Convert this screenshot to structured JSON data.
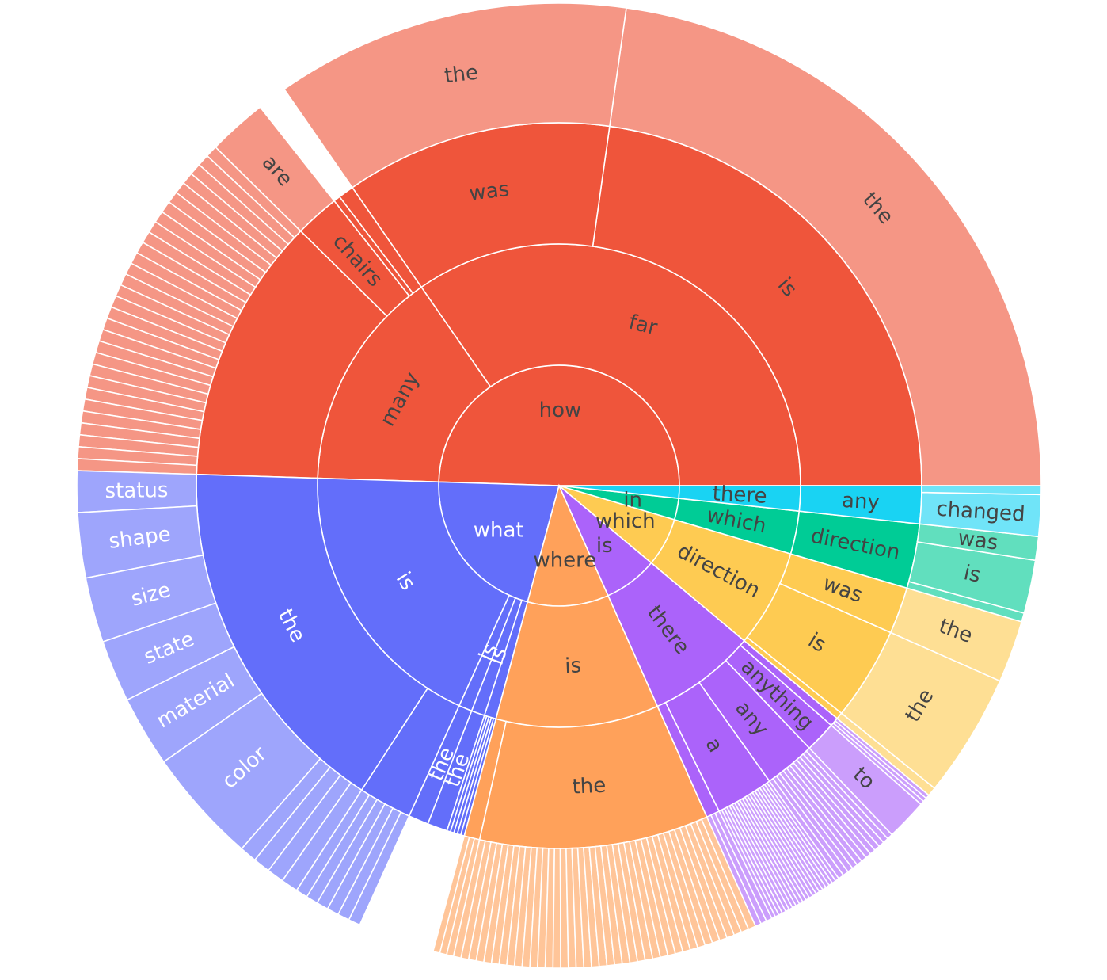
{
  "chart_data": {
    "type": "sunburst",
    "title": "",
    "value_unit": "share of questions (%), estimated from arc angles",
    "colors": {
      "how": "#EF553B",
      "what": "#636EFA",
      "where": "#FFA15A",
      "is": "#AB63FA",
      "which": "#FECB52",
      "in": "#00CC96",
      "are": "#19D3F3"
    },
    "tree": [
      {
        "id": "how",
        "label": "how",
        "value": 50.0,
        "children": [
          {
            "label": "far",
            "value": 35.0,
            "children": [
              {
                "label": "is",
                "value": 23.0,
                "children": [
                  {
                    "label": "the",
                    "value": 23.0
                  }
                ]
              },
              {
                "label": "was",
                "value": 12.0,
                "children": [
                  {
                    "label": "the",
                    "value": 12.0
                  }
                ]
              }
            ]
          },
          {
            "label": "many",
            "value": 15.0,
            "children": [
              {
                "label": "",
                "value": 0.7
              },
              {
                "label": "",
                "value": 0.3
              },
              {
                "label": "chairs",
                "value": 2.0,
                "children": [
                  {
                    "label": "are",
                    "value": 2.0
                  },
                  {
                    "label": "",
                    "value": 0.5
                  },
                  {
                    "label": "",
                    "value": 0.3
                  }
                ]
              },
              {
                "label": "",
                "value": 12.0,
                "children": [
                  {
                    "label": "",
                    "value": 12.0,
                    "fan": 30
                  }
                ]
              }
            ]
          }
        ]
      },
      {
        "id": "what",
        "label": "what",
        "value": 21.5,
        "children": [
          {
            "label": "is",
            "value": 18.9,
            "children": [
              {
                "label": "the",
                "value": 16.5,
                "children": [
                  {
                    "label": "status",
                    "value": 1.4
                  },
                  {
                    "label": "shape",
                    "value": 2.2
                  },
                  {
                    "label": "size",
                    "value": 2.2
                  },
                  {
                    "label": "state",
                    "value": 2.1
                  },
                  {
                    "label": "material",
                    "value": 2.4
                  },
                  {
                    "label": "color",
                    "value": 3.9
                  },
                  {
                    "label": "",
                    "value": 2.3,
                    "fan": 4
                  }
                ]
              },
              {
                "label": "",
                "value": 2.4,
                "children": [
                  {
                    "label": "",
                    "value": 2.4,
                    "fan": 6
                  }
                ]
              }
            ]
          },
          {
            "label": "is",
            "value": 0.9,
            "children": [
              {
                "label": "the",
                "value": 0.9
              }
            ]
          },
          {
            "label": "is",
            "value": 0.9,
            "children": [
              {
                "label": "the",
                "value": 0.9
              }
            ]
          },
          {
            "label": "",
            "value": 0.8,
            "children": [
              {
                "label": "",
                "value": 0.8,
                "fan": 5
              }
            ]
          }
        ]
      },
      {
        "id": "where",
        "label": "where",
        "value": 11.0,
        "children": [
          {
            "label": "is",
            "value": 11.0,
            "children": [
              {
                "label": "",
                "value": 0.7,
                "children": [
                  {
                    "label": "",
                    "value": 0.7,
                    "fan": 3
                  }
                ]
              },
              {
                "label": "the",
                "value": 10.3,
                "children": [
                  {
                    "label": "",
                    "value": 10.3,
                    "fan": 40
                  }
                ]
              }
            ]
          }
        ]
      },
      {
        "id": "is",
        "label": "is",
        "value": 7.3,
        "children": [
          {
            "label": "there",
            "value": 7.3,
            "children": [
              {
                "label": "",
                "value": 0.6,
                "children": [
                  {
                    "label": "",
                    "value": 0.6,
                    "fan": 3
                  }
                ]
              },
              {
                "label": "a",
                "value": 2.6,
                "children": [
                  {
                    "label": "",
                    "value": 2.6,
                    "fan": 20
                  }
                ]
              },
              {
                "label": "any",
                "value": 2.3,
                "children": [
                  {
                    "label": "",
                    "value": 2.3,
                    "fan": 12
                  }
                ]
              },
              {
                "label": "anything",
                "value": 1.4,
                "children": [
                  {
                    "label": "to",
                    "value": 1.4
                  }
                ]
              },
              {
                "label": "",
                "value": 0.4,
                "children": [
                  {
                    "label": "",
                    "value": 0.4,
                    "fan": 3
                  }
                ]
              }
            ]
          }
        ]
      },
      {
        "id": "which",
        "label": "which",
        "value": 6.6,
        "children": [
          {
            "label": "direction",
            "value": 6.6,
            "children": [
              {
                "label": "",
                "value": 0.3,
                "children": [
                  {
                    "label": "",
                    "value": 0.3
                  }
                ]
              },
              {
                "label": "is",
                "value": 4.2,
                "children": [
                  {
                    "label": "the",
                    "value": 4.2
                  }
                ]
              },
              {
                "label": "was",
                "value": 2.1,
                "children": [
                  {
                    "label": "the",
                    "value": 2.1
                  }
                ]
              }
            ]
          }
        ]
      },
      {
        "id": "in",
        "label": "in",
        "value": 2.9,
        "children": [
          {
            "label": "which",
            "value": 2.9,
            "children": [
              {
                "label": "direction",
                "value": 2.9,
                "children": [
                  {
                    "label": "",
                    "value": 0.3
                  },
                  {
                    "label": "is",
                    "value": 1.8
                  },
                  {
                    "label": "was",
                    "value": 0.8
                  }
                ]
              }
            ]
          }
        ]
      },
      {
        "id": "are",
        "label": "",
        "value": 1.7,
        "children": [
          {
            "label": "there",
            "value": 1.7,
            "children": [
              {
                "label": "any",
                "value": 1.7,
                "children": [
                  {
                    "label": "changed",
                    "value": 1.4
                  },
                  {
                    "label": "",
                    "value": 0.3
                  }
                ]
              }
            ]
          }
        ]
      }
    ]
  }
}
